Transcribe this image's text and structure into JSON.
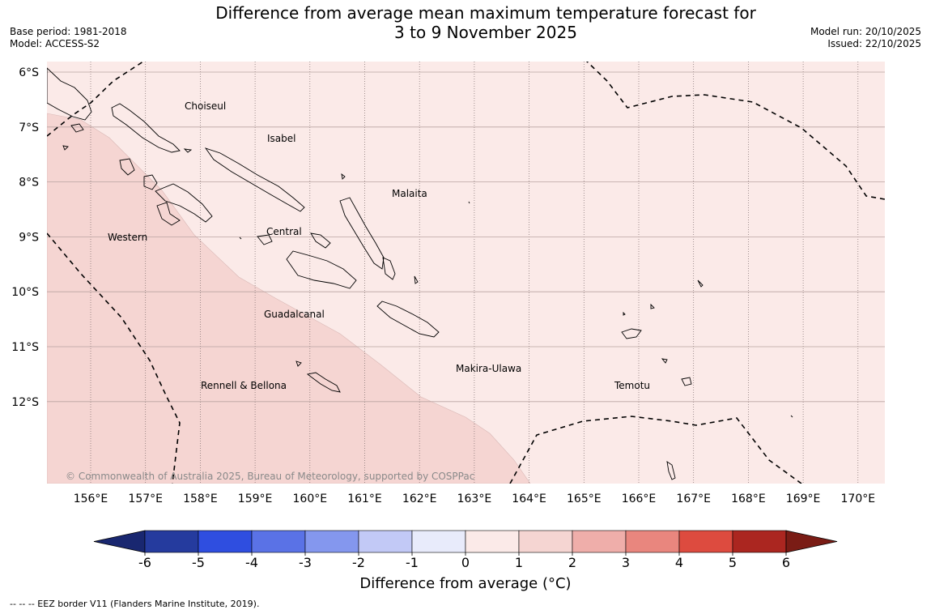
{
  "title": {
    "line1": "Difference from average mean maximum temperature forecast for",
    "line2": "3 to 9 November 2025"
  },
  "meta_left": {
    "base_period": "Base period: 1981-2018",
    "model": "Model: ACCESS-S2"
  },
  "meta_right": {
    "model_run": "Model run: 20/10/2025",
    "issued": "Issued: 22/10/2025"
  },
  "map": {
    "lat_labels": [
      "6°S",
      "7°S",
      "8°S",
      "9°S",
      "10°S",
      "11°S",
      "12°S"
    ],
    "lon_labels": [
      "156°E",
      "157°E",
      "158°E",
      "159°E",
      "160°E",
      "161°E",
      "162°E",
      "163°E",
      "164°E",
      "165°E",
      "166°E",
      "167°E",
      "168°E",
      "169°E",
      "170°E"
    ],
    "regions": [
      {
        "name": "Choiseul"
      },
      {
        "name": "Isabel"
      },
      {
        "name": "Malaita"
      },
      {
        "name": "Western"
      },
      {
        "name": "Central"
      },
      {
        "name": "Guadalcanal"
      },
      {
        "name": "Makira-Ulawa"
      },
      {
        "name": "Rennell & Bellona"
      },
      {
        "name": "Temotu"
      }
    ],
    "copyright": "© Commonwealth of Australia 2025, Bureau of Meteorology, supported by COSPPac",
    "anomaly_zones": [
      {
        "range": "0 to 1",
        "color": "#fbeae8"
      },
      {
        "range": "1 to 2",
        "color": "#f5d5d2"
      }
    ]
  },
  "colorbar": {
    "ticks": [
      "-6",
      "-5",
      "-4",
      "-3",
      "-2",
      "-1",
      "0",
      "1",
      "2",
      "3",
      "4",
      "5",
      "6"
    ],
    "colors": [
      "#253b9e",
      "#2f4ee0",
      "#5a72e6",
      "#8497ee",
      "#c2c9f6",
      "#e8ebfb",
      "#fbeae8",
      "#f5d5d2",
      "#efaeaa",
      "#e9867e",
      "#dd4b3f",
      "#ab2620"
    ],
    "under_color": "#192770",
    "over_color": "#7a1c15",
    "label": "Difference from average (°C)"
  },
  "footnote": "-- -- -- EEZ border V11 (Flanders Marine Institute, 2019)."
}
